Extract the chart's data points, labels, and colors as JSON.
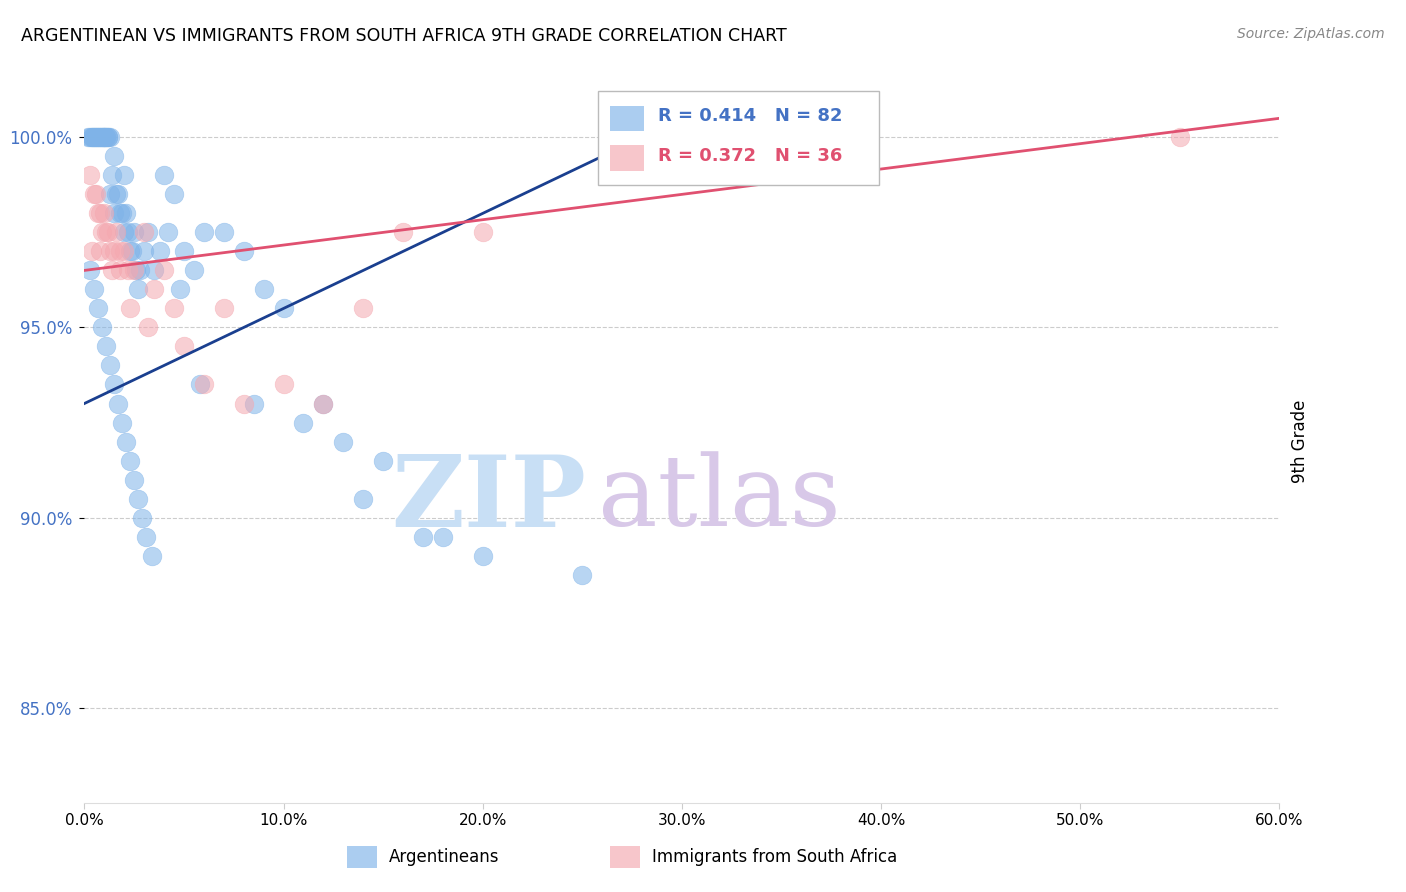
{
  "title": "ARGENTINEAN VS IMMIGRANTS FROM SOUTH AFRICA 9TH GRADE CORRELATION CHART",
  "source": "Source: ZipAtlas.com",
  "xlabel_ticks": [
    "0.0%",
    "10.0%",
    "20.0%",
    "30.0%",
    "40.0%",
    "50.0%",
    "60.0%"
  ],
  "xlabel_vals": [
    0.0,
    10.0,
    20.0,
    30.0,
    40.0,
    50.0,
    60.0
  ],
  "ylabel": "9th Grade",
  "ylabel_ticks": [
    "85.0%",
    "90.0%",
    "95.0%",
    "100.0%"
  ],
  "ylabel_vals": [
    85.0,
    90.0,
    95.0,
    100.0
  ],
  "xlim": [
    0.0,
    60.0
  ],
  "ylim": [
    82.5,
    101.5
  ],
  "legend_blue_r": "R = 0.414",
  "legend_blue_n": "N = 82",
  "legend_pink_r": "R = 0.372",
  "legend_pink_n": "N = 36",
  "blue_color": "#7fb3e8",
  "pink_color": "#f4a8b0",
  "blue_line_color": "#1a3f8f",
  "pink_line_color": "#e05070",
  "watermark_zip": "ZIP",
  "watermark_atlas": "atlas",
  "watermark_color_zip": "#c8dff5",
  "watermark_color_atlas": "#d8c8e8",
  "blue_scatter_x": [
    0.2,
    0.3,
    0.4,
    0.4,
    0.5,
    0.5,
    0.6,
    0.6,
    0.7,
    0.7,
    0.8,
    0.8,
    0.9,
    0.9,
    1.0,
    1.0,
    1.0,
    1.1,
    1.1,
    1.2,
    1.2,
    1.3,
    1.3,
    1.4,
    1.5,
    1.5,
    1.6,
    1.7,
    1.8,
    1.9,
    2.0,
    2.0,
    2.1,
    2.2,
    2.3,
    2.4,
    2.5,
    2.6,
    2.7,
    2.8,
    3.0,
    3.2,
    3.5,
    3.8,
    4.0,
    4.2,
    4.5,
    5.0,
    5.5,
    6.0,
    7.0,
    8.0,
    9.0,
    10.0,
    11.0,
    12.0,
    13.0,
    14.0,
    15.0,
    17.0,
    18.0,
    20.0,
    25.0,
    0.3,
    0.5,
    0.7,
    0.9,
    1.1,
    1.3,
    1.5,
    1.7,
    1.9,
    2.1,
    2.3,
    2.5,
    2.7,
    2.9,
    3.1,
    3.4,
    4.8,
    5.8,
    8.5
  ],
  "blue_scatter_y": [
    100.0,
    100.0,
    100.0,
    100.0,
    100.0,
    100.0,
    100.0,
    100.0,
    100.0,
    100.0,
    100.0,
    100.0,
    100.0,
    100.0,
    100.0,
    100.0,
    100.0,
    100.0,
    100.0,
    100.0,
    100.0,
    100.0,
    98.5,
    99.0,
    99.5,
    98.0,
    98.5,
    98.5,
    98.0,
    98.0,
    99.0,
    97.5,
    98.0,
    97.5,
    97.0,
    97.0,
    97.5,
    96.5,
    96.0,
    96.5,
    97.0,
    97.5,
    96.5,
    97.0,
    99.0,
    97.5,
    98.5,
    97.0,
    96.5,
    97.5,
    97.5,
    97.0,
    96.0,
    95.5,
    92.5,
    93.0,
    92.0,
    90.5,
    91.5,
    89.5,
    89.5,
    89.0,
    88.5,
    96.5,
    96.0,
    95.5,
    95.0,
    94.5,
    94.0,
    93.5,
    93.0,
    92.5,
    92.0,
    91.5,
    91.0,
    90.5,
    90.0,
    89.5,
    89.0,
    96.0,
    93.5,
    93.0
  ],
  "pink_scatter_x": [
    0.3,
    0.5,
    0.6,
    0.7,
    0.8,
    0.9,
    1.0,
    1.1,
    1.2,
    1.3,
    1.5,
    1.6,
    1.8,
    2.0,
    2.2,
    2.5,
    3.0,
    3.5,
    4.0,
    5.0,
    6.0,
    7.0,
    8.0,
    10.0,
    12.0,
    14.0,
    16.0,
    20.0,
    55.0,
    0.4,
    0.8,
    1.4,
    1.8,
    2.3,
    3.2,
    4.5
  ],
  "pink_scatter_y": [
    99.0,
    98.5,
    98.5,
    98.0,
    98.0,
    97.5,
    98.0,
    97.5,
    97.5,
    97.0,
    97.0,
    97.5,
    97.0,
    97.0,
    96.5,
    96.5,
    97.5,
    96.0,
    96.5,
    94.5,
    93.5,
    95.5,
    93.0,
    93.5,
    93.0,
    95.5,
    97.5,
    97.5,
    100.0,
    97.0,
    97.0,
    96.5,
    96.5,
    95.5,
    95.0,
    95.5
  ],
  "blue_line_x0": 0.0,
  "blue_line_y0": 93.0,
  "blue_line_x1": 30.0,
  "blue_line_y1": 100.5,
  "pink_line_x0": 0.0,
  "pink_line_y0": 96.5,
  "pink_line_x1": 60.0,
  "pink_line_y1": 100.5
}
